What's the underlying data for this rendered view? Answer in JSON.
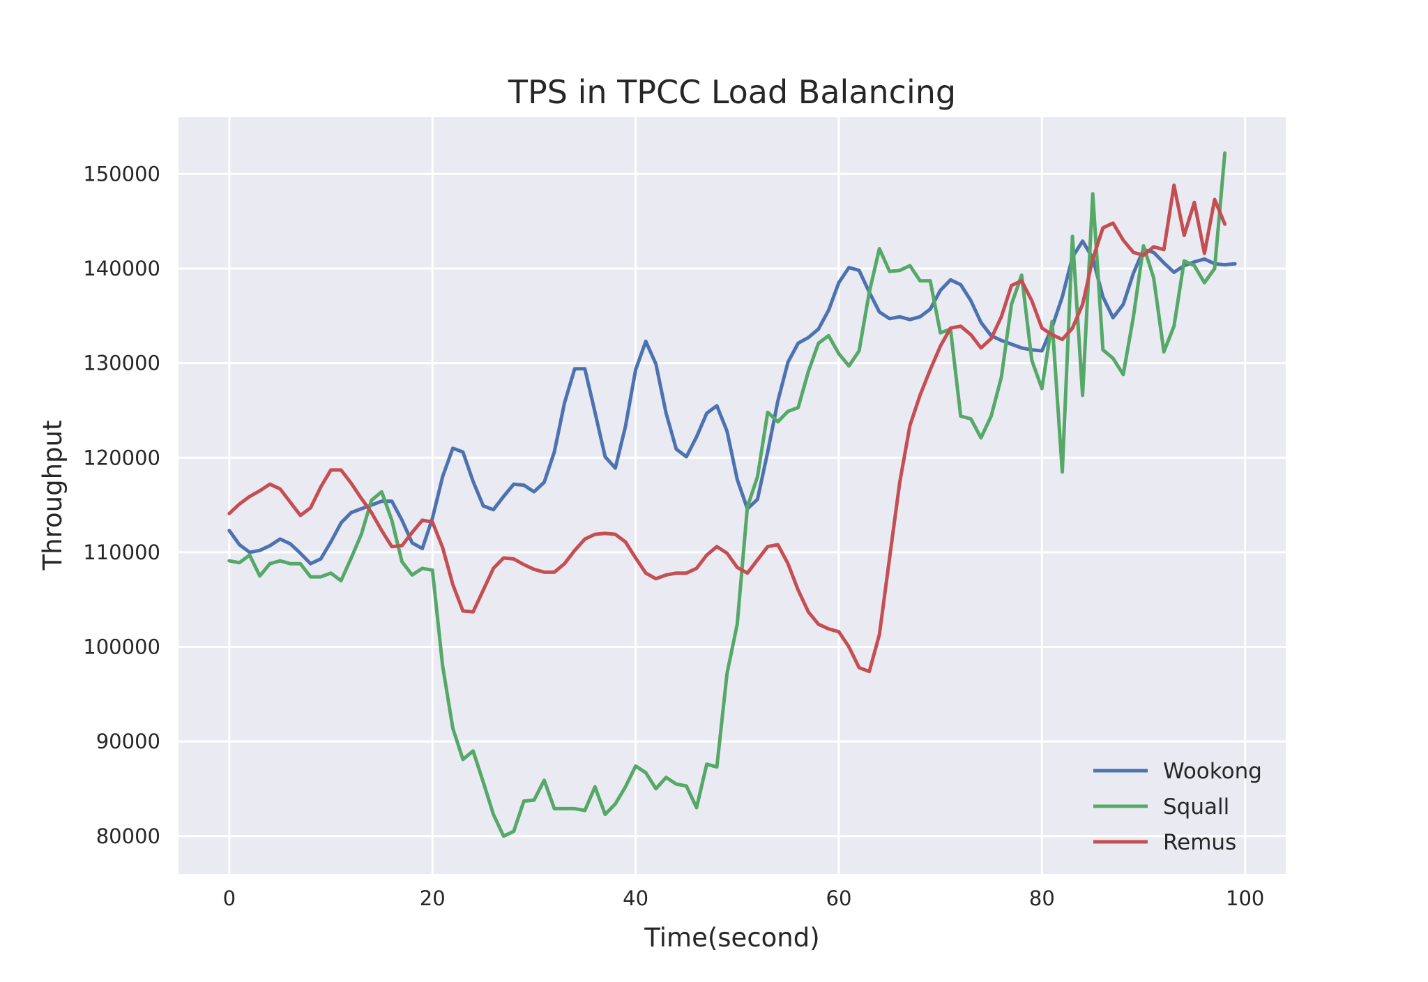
{
  "chart_data": {
    "type": "line",
    "title": "TPS in TPCC Load Balancing",
    "xlabel": "Time(second)",
    "ylabel": "Throughput",
    "xlim": [
      -5,
      104
    ],
    "ylim": [
      76000,
      156000
    ],
    "xticks": [
      0,
      20,
      40,
      60,
      80,
      100
    ],
    "yticks": [
      80000,
      90000,
      100000,
      110000,
      120000,
      130000,
      140000,
      150000
    ],
    "grid": true,
    "legend_position": "lower-right",
    "series": [
      {
        "name": "Wookong",
        "color": "#4c72b0",
        "values": [
          112300,
          110800,
          110000,
          110200,
          110700,
          111400,
          110900,
          109900,
          108800,
          109300,
          111100,
          113100,
          114200,
          114600,
          115000,
          115400,
          115400,
          113400,
          111000,
          110400,
          113600,
          118000,
          121000,
          120600,
          117500,
          114900,
          114500,
          115900,
          117200,
          117100,
          116400,
          117400,
          120600,
          125800,
          129400,
          129400,
          124800,
          120100,
          118900,
          123300,
          129300,
          132300,
          129900,
          124700,
          120900,
          120100,
          122200,
          124700,
          125500,
          122800,
          117700,
          114600,
          115600,
          120600,
          126000,
          130100,
          132100,
          132700,
          133600,
          135600,
          138500,
          140100,
          139800,
          137500,
          135400,
          134700,
          134900,
          134600,
          134900,
          135700,
          137700,
          138800,
          138300,
          136600,
          134300,
          132900,
          132400,
          132000,
          131600,
          131400,
          131300,
          133800,
          137000,
          141200,
          142900,
          141100,
          137000,
          134800,
          136200,
          139500,
          142000,
          141700,
          140600,
          139600,
          140300,
          140700,
          141000,
          140500,
          140400,
          140500
        ]
      },
      {
        "name": "Squall",
        "color": "#55a868",
        "values": [
          109100,
          108900,
          109700,
          107500,
          108800,
          109100,
          108800,
          108800,
          107400,
          107400,
          107800,
          107000,
          109400,
          111900,
          115500,
          116400,
          113400,
          109000,
          107600,
          108300,
          108100,
          98000,
          91400,
          88100,
          89000,
          85700,
          82300,
          80000,
          80500,
          83700,
          83800,
          85900,
          82900,
          82900,
          82900,
          82700,
          85200,
          82300,
          83400,
          85200,
          87400,
          86700,
          85000,
          86200,
          85500,
          85300,
          83000,
          87600,
          87300,
          97200,
          102400,
          114800,
          118000,
          124800,
          123800,
          124900,
          125300,
          129100,
          132100,
          132900,
          131000,
          129700,
          131300,
          137500,
          142100,
          139700,
          139800,
          140300,
          138700,
          138700,
          133200,
          133600,
          124400,
          124100,
          122100,
          124400,
          128500,
          136200,
          139300,
          130300,
          127300,
          134400,
          118500,
          143400,
          126600,
          147900,
          131400,
          130500,
          128800,
          134900,
          142400,
          139000,
          131200,
          133900,
          140800,
          140300,
          138500,
          140000,
          152200
        ]
      },
      {
        "name": "Remus",
        "color": "#c44e52",
        "values": [
          114100,
          115100,
          115900,
          116500,
          117200,
          116700,
          115300,
          113900,
          114700,
          116900,
          118700,
          118700,
          117300,
          115700,
          114200,
          112300,
          110600,
          110700,
          112100,
          113400,
          113200,
          110500,
          106600,
          103800,
          103700,
          106000,
          108300,
          109400,
          109300,
          108700,
          108200,
          107900,
          107900,
          108800,
          110200,
          111400,
          111900,
          112000,
          111900,
          111100,
          109400,
          107800,
          107200,
          107600,
          107800,
          107800,
          108300,
          109700,
          110600,
          109900,
          108400,
          107800,
          109200,
          110600,
          110800,
          108800,
          106000,
          103700,
          102400,
          101900,
          101600,
          100000,
          97800,
          97400,
          101300,
          109400,
          117400,
          123400,
          126600,
          129300,
          131800,
          133700,
          133900,
          133000,
          131600,
          132600,
          134900,
          138200,
          138700,
          136600,
          133700,
          133000,
          132500,
          133700,
          136200,
          141000,
          144300,
          144800,
          143000,
          141700,
          141400,
          142300,
          142000,
          148800,
          143500,
          147000,
          141600,
          147300,
          144700
        ]
      }
    ]
  }
}
